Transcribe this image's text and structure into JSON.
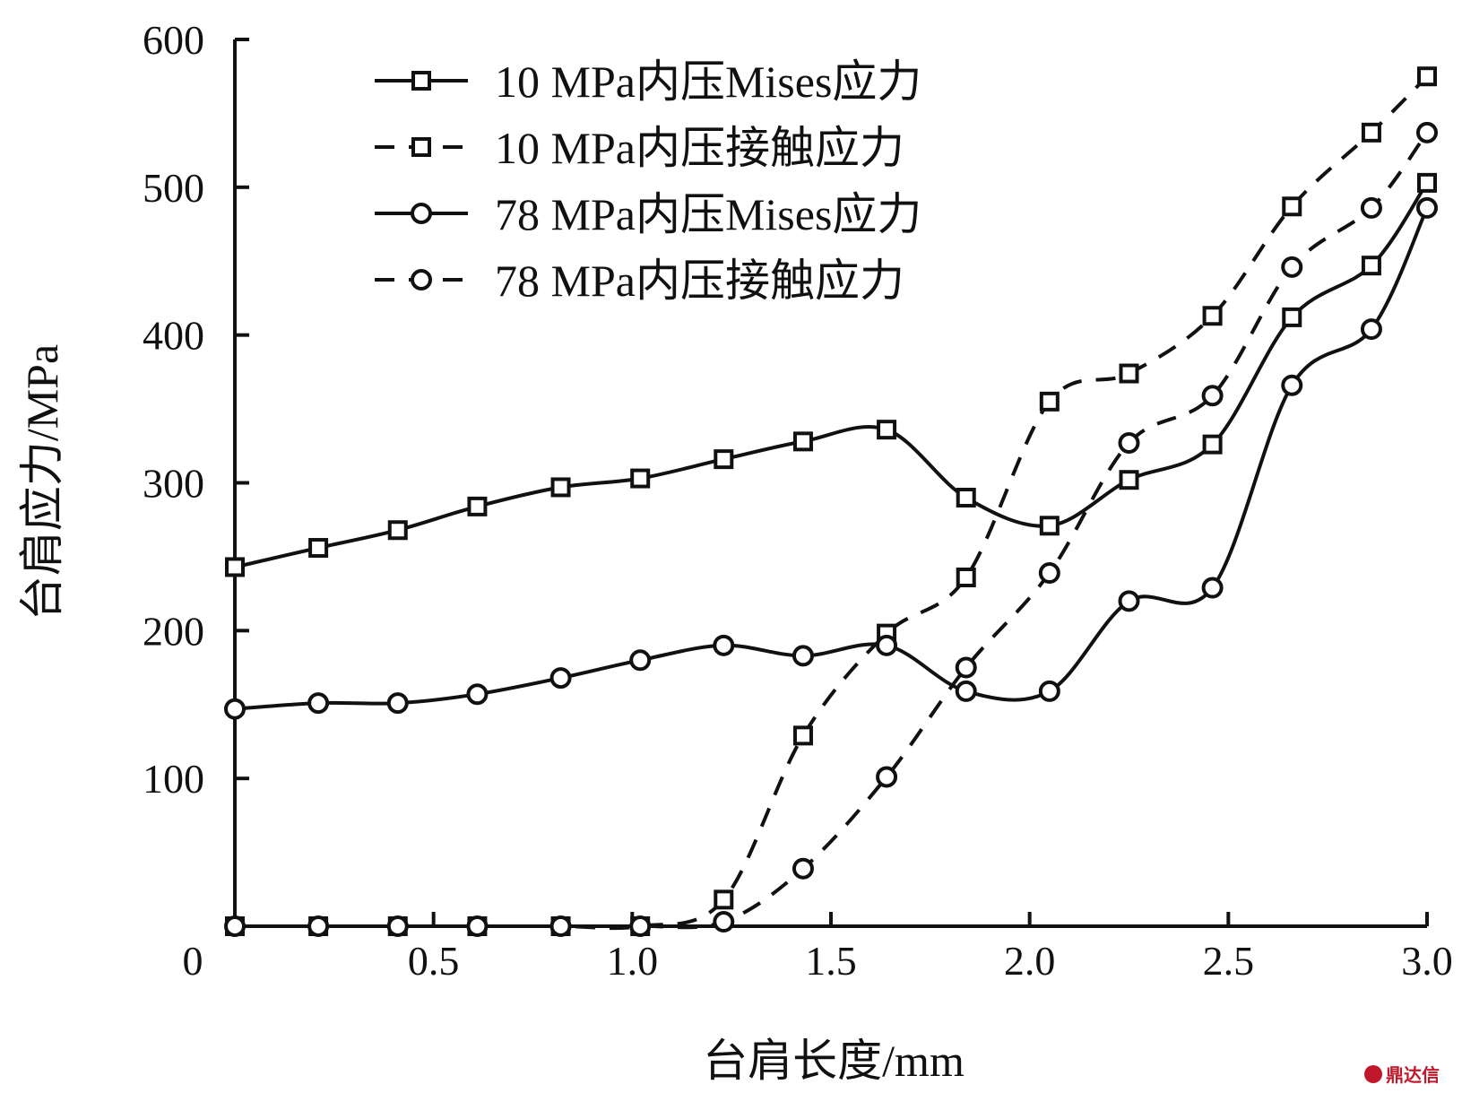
{
  "watermark": "鼎达信",
  "chart_data": {
    "type": "line",
    "xlabel": "台肩长度/mm",
    "ylabel": "台肩应力/MPa",
    "xlim": [
      0,
      3.0
    ],
    "ylim": [
      0,
      600
    ],
    "xticks": [
      {
        "value": 0,
        "label": "0"
      },
      {
        "value": 0.5,
        "label": "0.5"
      },
      {
        "value": 1.0,
        "label": "1.0"
      },
      {
        "value": 1.5,
        "label": "1.5"
      },
      {
        "value": 2.0,
        "label": "2.0"
      },
      {
        "value": 2.5,
        "label": "2.5"
      },
      {
        "value": 3.0,
        "label": "3.0"
      }
    ],
    "yticks": [
      {
        "value": 100,
        "label": "100"
      },
      {
        "value": 200,
        "label": "200"
      },
      {
        "value": 300,
        "label": "300"
      },
      {
        "value": 400,
        "label": "400"
      },
      {
        "value": 500,
        "label": "500"
      },
      {
        "value": 600,
        "label": "600"
      }
    ],
    "grid": false,
    "legend": "top-center",
    "series": [
      {
        "name": "10 MPa内压Mises应力",
        "line_style": "solid",
        "marker": "square",
        "x": [
          0.0,
          0.21,
          0.41,
          0.61,
          0.82,
          1.02,
          1.23,
          1.43,
          1.64,
          1.84,
          2.05,
          2.25,
          2.46,
          2.66,
          2.86,
          3.0
        ],
        "y": [
          243,
          256,
          268,
          284,
          297,
          303,
          316,
          328,
          336,
          290,
          271,
          302,
          326,
          412,
          447,
          503
        ]
      },
      {
        "name": "10 MPa内压接触应力",
        "line_style": "dashed",
        "marker": "square",
        "x": [
          0.0,
          0.21,
          0.41,
          0.61,
          0.82,
          1.02,
          1.23,
          1.43,
          1.64,
          1.84,
          2.05,
          2.25,
          2.46,
          2.66,
          2.86,
          3.0
        ],
        "y": [
          0,
          0,
          0,
          0,
          0,
          0,
          18,
          129,
          198,
          236,
          355,
          374,
          413,
          487,
          537,
          575
        ]
      },
      {
        "name": "78 MPa内压Mises应力",
        "line_style": "solid",
        "marker": "circle",
        "x": [
          0.0,
          0.21,
          0.41,
          0.61,
          0.82,
          1.02,
          1.23,
          1.43,
          1.64,
          1.84,
          2.05,
          2.25,
          2.46,
          2.66,
          2.86,
          3.0
        ],
        "y": [
          147,
          151,
          151,
          157,
          168,
          180,
          190,
          183,
          190,
          159,
          159,
          220,
          229,
          366,
          404,
          486
        ]
      },
      {
        "name": "78 MPa内压接触应力",
        "line_style": "dashed",
        "marker": "circle",
        "x": [
          0.0,
          0.21,
          0.41,
          0.61,
          0.82,
          1.02,
          1.23,
          1.43,
          1.64,
          1.84,
          2.05,
          2.25,
          2.46,
          2.66,
          2.86,
          3.0
        ],
        "y": [
          0,
          0,
          0,
          0,
          0,
          0,
          3,
          39,
          101,
          175,
          239,
          327,
          359,
          446,
          486,
          537
        ]
      }
    ]
  }
}
